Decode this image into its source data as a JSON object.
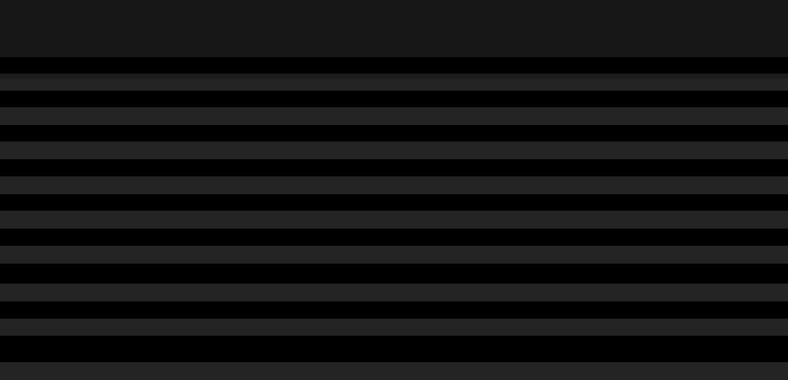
{
  "colors": {
    "header": "#171717",
    "background": "#000000",
    "subbar": "#1c1c1c",
    "row_stripe": "#242424"
  }
}
